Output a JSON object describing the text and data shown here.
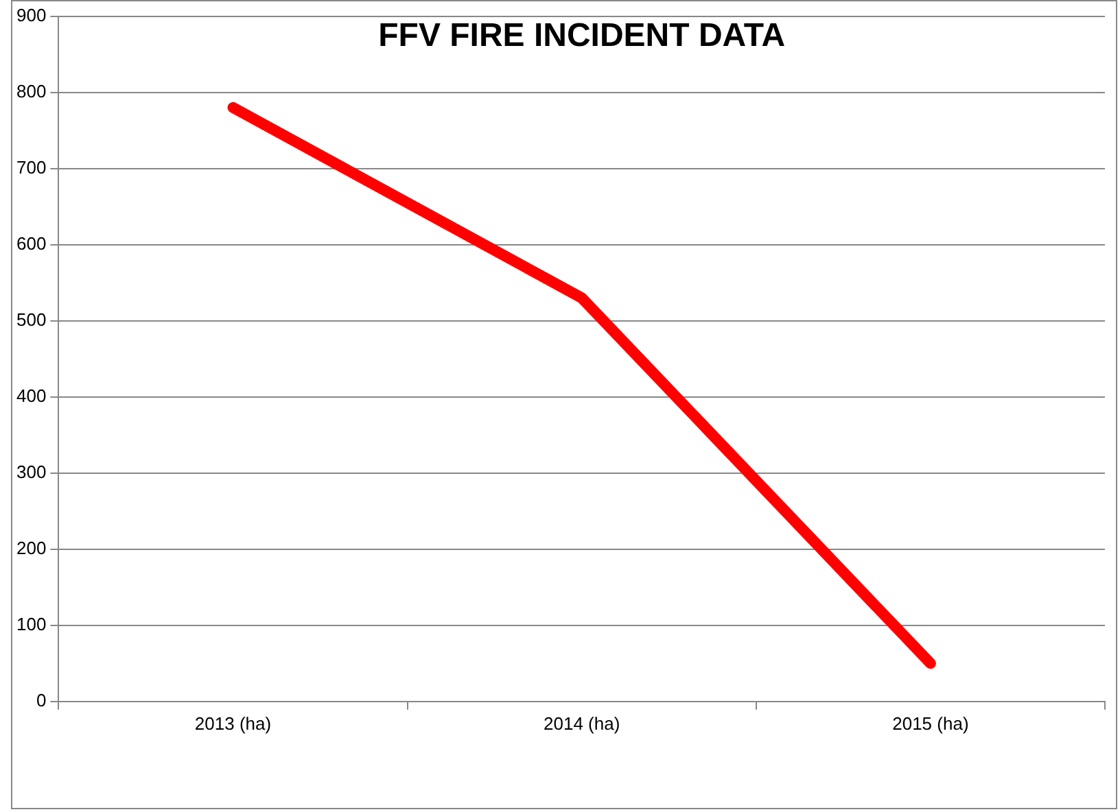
{
  "chart_data": {
    "type": "line",
    "title": "FFV FIRE INCIDENT DATA",
    "categories": [
      "2013 (ha)",
      "2014 (ha)",
      "2015 (ha)"
    ],
    "series": [
      {
        "color": "#ff0000",
        "values": [
          780,
          530,
          50
        ]
      }
    ],
    "ylim": [
      0,
      900
    ],
    "yticks": [
      0,
      100,
      200,
      300,
      400,
      500,
      600,
      700,
      800,
      900
    ],
    "grid": "y",
    "legend": false,
    "marker": "none"
  }
}
